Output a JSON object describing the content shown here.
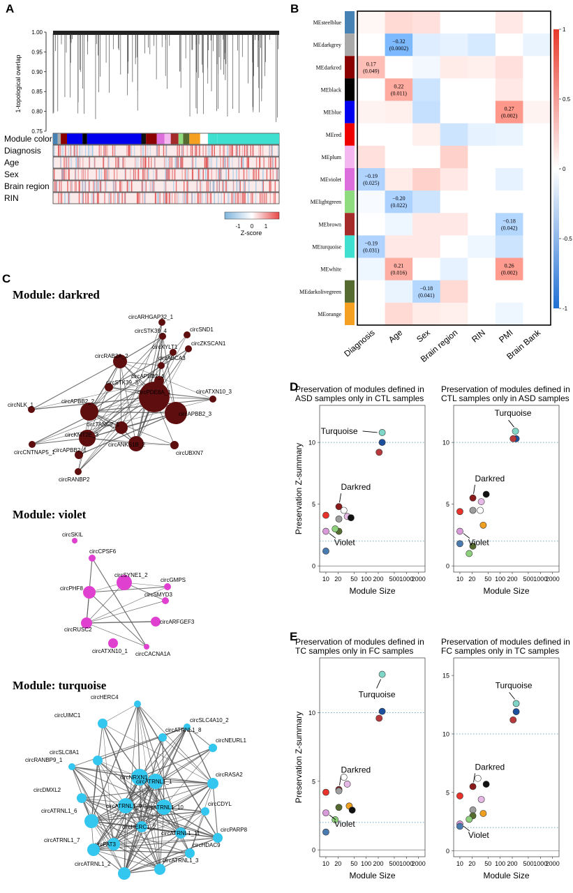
{
  "panel_labels": {
    "a": "A",
    "b": "B",
    "c": "C",
    "d": "D",
    "e": "E"
  },
  "panel_a": {
    "ylabel": "1-topological overlap",
    "yticks": [
      "1.00",
      "0.95",
      "0.90",
      "0.85",
      "0.80",
      "0.75"
    ],
    "tracks": [
      "Module color",
      "Diagnosis",
      "Age",
      "Sex",
      "Brain region",
      "RIN"
    ],
    "zscore_title": "Z-score",
    "zscore_ticks": [
      "-1",
      "0",
      "1"
    ]
  },
  "chart_data": [
    {
      "type": "heatmap",
      "title": "Module-trait correlation",
      "rows": [
        "MEsteelblue",
        "MEdarkgrey",
        "MEdarkred",
        "MEblack",
        "MEblue",
        "MEred",
        "MEplum",
        "MEviolet",
        "MElightgreen",
        "MEbrown",
        "MEturquoise",
        "MEwhite",
        "MEdarkolivegreen",
        "MEorange"
      ],
      "row_colors": [
        "#4682b4",
        "#a9a9a9",
        "#8b0000",
        "#000000",
        "#0000ee",
        "#ee0000",
        "#f4b7f0",
        "#dd6fdc",
        "#8fdc7f",
        "#a52a2a",
        "#40e0d0",
        "#ffffff",
        "#556b2f",
        "#f5a020"
      ],
      "columns": [
        "Diagnosis",
        "Age",
        "Sex",
        "Brain region",
        "RIN",
        "PMI",
        "Brain Bank"
      ],
      "values": [
        [
          0.02,
          0.1,
          0.08,
          0.0,
          0.0,
          0.06,
          0.0
        ],
        [
          0.0,
          -0.32,
          -0.08,
          -0.06,
          -0.1,
          0.0,
          -0.05
        ],
        [
          0.17,
          0.0,
          -0.03,
          0.05,
          0.04,
          0.08,
          0.0
        ],
        [
          0.0,
          0.22,
          -0.12,
          0.0,
          0.0,
          0.06,
          0.0
        ],
        [
          0.03,
          0.04,
          -0.14,
          0.0,
          0.0,
          0.27,
          0.03
        ],
        [
          0.0,
          0.0,
          0.04,
          -0.12,
          -0.06,
          -0.05,
          0.0
        ],
        [
          0.08,
          0.0,
          0.0,
          0.12,
          0.0,
          0.0,
          0.0
        ],
        [
          -0.19,
          0.05,
          0.12,
          0.06,
          0.0,
          -0.06,
          0.0
        ],
        [
          -0.02,
          -0.2,
          -0.12,
          0.0,
          0.0,
          0.0,
          0.0
        ],
        [
          0.0,
          -0.04,
          0.06,
          0.06,
          0.0,
          -0.18,
          0.0
        ],
        [
          -0.19,
          0.06,
          0.06,
          0.0,
          -0.04,
          -0.12,
          0.0
        ],
        [
          -0.04,
          0.21,
          0.0,
          -0.06,
          0.0,
          0.26,
          0.0
        ],
        [
          0.0,
          -0.05,
          -0.18,
          0.1,
          0.0,
          0.0,
          0.0
        ],
        [
          0.0,
          0.1,
          0.05,
          0.04,
          0.0,
          -0.04,
          0.0
        ]
      ],
      "cell_labels": [
        [
          "",
          "",
          "",
          "",
          "",
          "",
          ""
        ],
        [
          "",
          "−0.32\n(0.0002)",
          "",
          "",
          "",
          "",
          ""
        ],
        [
          "0.17\n(0.049)",
          "",
          "",
          "",
          "",
          "",
          ""
        ],
        [
          "",
          "0.22\n(0.011)",
          "",
          "",
          "",
          "",
          ""
        ],
        [
          "",
          "",
          "",
          "",
          "",
          "0.27\n(0.002)",
          ""
        ],
        [
          "",
          "",
          "",
          "",
          "",
          "",
          ""
        ],
        [
          "",
          "",
          "",
          "",
          "",
          "",
          ""
        ],
        [
          "−0.19\n(0.025)",
          "",
          "",
          "",
          "",
          "",
          ""
        ],
        [
          "",
          "−0.20\n(0.022)",
          "",
          "",
          "",
          "",
          ""
        ],
        [
          "",
          "",
          "",
          "",
          "",
          "−0.18\n(0.042)",
          ""
        ],
        [
          "−0.19\n(0.031)",
          "",
          "",
          "",
          "",
          "",
          ""
        ],
        [
          "",
          "0.21\n(0.016)",
          "",
          "",
          "",
          "0.26\n(0.002)",
          ""
        ],
        [
          "",
          "",
          "−0.18\n(0.041)",
          "",
          "",
          "",
          ""
        ],
        [
          "",
          "",
          "",
          "",
          "",
          "",
          ""
        ]
      ],
      "colorbar_ticks": [
        "1",
        "0.5",
        "0",
        "-0.5",
        "-1"
      ],
      "vlim": [
        -1,
        1
      ]
    },
    {
      "type": "scatter",
      "title": "Preservation of modules defined in ASD samples only in CTL samples",
      "title_lines": [
        "Preservation of modules defined in",
        "ASD samples only in CTL samples"
      ],
      "xlabel": "Module Size",
      "ylabel": "Preservation Z-summary",
      "xticks": [
        10,
        20,
        50,
        100,
        200,
        500,
        1000,
        2000
      ],
      "xtick_labels": [
        "10",
        "20",
        "50",
        "100",
        "200",
        "500",
        "1000",
        "2000"
      ],
      "yticks": [
        0,
        5,
        10
      ],
      "ylim": [
        -0.5,
        13
      ],
      "thresholds": [
        2,
        10
      ],
      "points": [
        {
          "module": "turquoise",
          "color": "#7fd6c6",
          "size": 250,
          "z": 10.8
        },
        {
          "module": "darkblue",
          "color": "#1c4f9c",
          "size": 250,
          "z": 10.0
        },
        {
          "module": "brown",
          "color": "#b8393b",
          "size": 210,
          "z": 9.2
        },
        {
          "module": "darkred",
          "color": "#8b1a1a",
          "size": 21,
          "z": 4.8
        },
        {
          "module": "white",
          "color": "#ffffff",
          "size": 28,
          "z": 4.5
        },
        {
          "module": "red",
          "color": "#e8322a",
          "size": 10,
          "z": 4.1
        },
        {
          "module": "plum",
          "color": "#e6b8e6",
          "size": 34,
          "z": 4.0
        },
        {
          "module": "black",
          "color": "#111111",
          "size": 42,
          "z": 3.9
        },
        {
          "module": "grey",
          "color": "#9e9e9e",
          "size": 21,
          "z": 3.8
        },
        {
          "module": "darkolivegreen",
          "color": "#556b2f",
          "size": 21,
          "z": 2.8
        },
        {
          "module": "lightgreen",
          "color": "#8ed07c",
          "size": 17,
          "z": 3.0
        },
        {
          "module": "violet",
          "color": "#d99ad9",
          "size": 10,
          "z": 2.8
        },
        {
          "module": "steelblue",
          "color": "#4a7bb0",
          "size": 10,
          "z": 1.2
        }
      ],
      "annotations": [
        "Turquoise",
        "Darkred",
        "Violet"
      ]
    },
    {
      "type": "scatter",
      "title": "Preservation of modules defined in CTL samples only in ASD samples",
      "title_lines": [
        "Preservation of modules defined in",
        "CTL samples only in ASD samples"
      ],
      "xlabel": "Module Size",
      "ylabel": "",
      "xticks": [
        10,
        20,
        50,
        100,
        200,
        500,
        1000,
        2000
      ],
      "xtick_labels": [
        "10",
        "20",
        "50",
        "100",
        "200",
        "500",
        "1000",
        "2000"
      ],
      "yticks": [
        0,
        5,
        10
      ],
      "ylim": [
        -0.5,
        13
      ],
      "thresholds": [
        2,
        10
      ],
      "points": [
        {
          "module": "turquoise",
          "color": "#7fd6c6",
          "size": 240,
          "z": 10.9
        },
        {
          "module": "darkblue",
          "color": "#1c4f9c",
          "size": 250,
          "z": 10.3
        },
        {
          "module": "brown",
          "color": "#b8393b",
          "size": 210,
          "z": 10.3
        },
        {
          "module": "black",
          "color": "#111111",
          "size": 45,
          "z": 5.8
        },
        {
          "module": "darkred",
          "color": "#8b1a1a",
          "size": 21,
          "z": 5.5
        },
        {
          "module": "plum",
          "color": "#e6b8e6",
          "size": 34,
          "z": 5.2
        },
        {
          "module": "white",
          "color": "#ffffff",
          "size": 32,
          "z": 4.5
        },
        {
          "module": "grey",
          "color": "#9e9e9e",
          "size": 21,
          "z": 4.5
        },
        {
          "module": "red",
          "color": "#e8322a",
          "size": 10,
          "z": 4.4
        },
        {
          "module": "orange",
          "color": "#f0a020",
          "size": 38,
          "z": 3.3
        },
        {
          "module": "violet",
          "color": "#d99ad9",
          "size": 10,
          "z": 2.8
        },
        {
          "module": "darkolivegreen",
          "color": "#556b2f",
          "size": 21,
          "z": 1.6
        },
        {
          "module": "steelblue",
          "color": "#4a7bb0",
          "size": 10,
          "z": 1.8
        },
        {
          "module": "lightgreen",
          "color": "#8ed07c",
          "size": 17,
          "z": 1.0
        }
      ],
      "annotations": [
        "Turquoise",
        "Darkred",
        "Violet"
      ]
    },
    {
      "type": "scatter",
      "title": "Preservation of modules defined in TC samples only in FC samples",
      "title_lines": [
        "Preservation of modules defined in",
        "TC samples only in FC samples"
      ],
      "xlabel": "Module Size",
      "ylabel": "Preservation Z-summary",
      "xticks": [
        10,
        20,
        50,
        100,
        200,
        500,
        1000,
        2000
      ],
      "xtick_labels": [
        "10",
        "20",
        "50",
        "100",
        "200",
        "500",
        "1000",
        "2000"
      ],
      "yticks": [
        0,
        5,
        10
      ],
      "ylim": [
        -0.5,
        14
      ],
      "thresholds": [
        2,
        10
      ],
      "points": [
        {
          "module": "turquoise",
          "color": "#7fd6c6",
          "size": 250,
          "z": 12.8
        },
        {
          "module": "darkblue",
          "color": "#1c4f9c",
          "size": 250,
          "z": 10.1
        },
        {
          "module": "brown",
          "color": "#b8393b",
          "size": 210,
          "z": 9.6
        },
        {
          "module": "white",
          "color": "#ffffff",
          "size": 28,
          "z": 5.3
        },
        {
          "module": "plum",
          "color": "#e6b8e6",
          "size": 34,
          "z": 4.8
        },
        {
          "module": "darkred",
          "color": "#8b1a1a",
          "size": 21,
          "z": 4.4
        },
        {
          "module": "grey",
          "color": "#9e9e9e",
          "size": 21,
          "z": 4.3
        },
        {
          "module": "red",
          "color": "#e8322a",
          "size": 10,
          "z": 4.2
        },
        {
          "module": "orange",
          "color": "#f0a020",
          "size": 38,
          "z": 3.2
        },
        {
          "module": "darkolivegreen",
          "color": "#556b2f",
          "size": 21,
          "z": 3.1
        },
        {
          "module": "black",
          "color": "#111111",
          "size": 45,
          "z": 2.9
        },
        {
          "module": "violet",
          "color": "#d99ad9",
          "size": 10,
          "z": 2.7
        },
        {
          "module": "lightgreen",
          "color": "#8ed07c",
          "size": 17,
          "z": 2.2
        },
        {
          "module": "steelblue",
          "color": "#4a7bb0",
          "size": 10,
          "z": 1.3
        }
      ],
      "annotations": [
        "Turquoise",
        "Darkred",
        "Violet"
      ]
    },
    {
      "type": "scatter",
      "title": "Preservation of modules defined in FC samples only in TC samples",
      "title_lines": [
        "Preservation of modules defined in",
        "FC samples only in TC samples"
      ],
      "xlabel": "Module Size",
      "ylabel": "",
      "xticks": [
        10,
        20,
        50,
        100,
        200,
        500,
        1000,
        2000
      ],
      "xtick_labels": [
        "10",
        "20",
        "50",
        "100",
        "200",
        "500",
        "1000",
        "2000"
      ],
      "yticks": [
        0,
        5,
        10,
        15
      ],
      "ylim": [
        -0.5,
        16.5
      ],
      "thresholds": [
        2,
        10
      ],
      "points": [
        {
          "module": "turquoise",
          "color": "#7fd6c6",
          "size": 250,
          "z": 12.6
        },
        {
          "module": "darkblue",
          "color": "#1c4f9c",
          "size": 250,
          "z": 11.9
        },
        {
          "module": "brown",
          "color": "#b8393b",
          "size": 210,
          "z": 11.2
        },
        {
          "module": "white",
          "color": "#ffffff",
          "size": 28,
          "z": 6.2
        },
        {
          "module": "black",
          "color": "#111111",
          "size": 45,
          "z": 5.7
        },
        {
          "module": "darkred",
          "color": "#8b1a1a",
          "size": 21,
          "z": 5.5
        },
        {
          "module": "red",
          "color": "#e8322a",
          "size": 10,
          "z": 4.7
        },
        {
          "module": "plum",
          "color": "#e6b8e6",
          "size": 34,
          "z": 4.4
        },
        {
          "module": "grey",
          "color": "#9e9e9e",
          "size": 21,
          "z": 3.5
        },
        {
          "module": "orange",
          "color": "#f0a020",
          "size": 38,
          "z": 3.2
        },
        {
          "module": "darkolivegreen",
          "color": "#556b2f",
          "size": 21,
          "z": 3.0
        },
        {
          "module": "lightgreen",
          "color": "#8ed07c",
          "size": 17,
          "z": 2.7
        },
        {
          "module": "violet",
          "color": "#d99ad9",
          "size": 10,
          "z": 2.3
        },
        {
          "module": "steelblue",
          "color": "#4a7bb0",
          "size": 10,
          "z": 2.1
        }
      ],
      "annotations": [
        "Turquoise",
        "Darkred",
        "Violet"
      ]
    }
  ],
  "networks": [
    {
      "title": "Module: darkred",
      "color": "#5e0e0e",
      "nodes": [
        "circARHGAP32_1",
        "circSTK39_4",
        "circSND1",
        "circZKSCAN1",
        "circXYLT1",
        "circRAB2A_2",
        "circABCA3",
        "circAPBB2_4",
        "circSTK39_3",
        "circATXN10_3",
        "circNLK_1",
        "circAPBB2_2",
        "circPDE8A_1",
        "circAPBB2_3",
        "circTANC2_1",
        "circKMT2E_3",
        "circCNTNAP5_1",
        "circAPBB2_1",
        "circANKS1B_2",
        "circUBXN7",
        "circRANBP2"
      ]
    },
    {
      "title": "Module: violet",
      "color": "#e040d0",
      "nodes": [
        "circSKIL",
        "circCPSF6",
        "circSYNE1_2",
        "circGMPS",
        "circPHF8",
        "circSMYD3",
        "circARFGEF3",
        "circRUSC2",
        "circATXN10_1",
        "circCACNA1A"
      ]
    },
    {
      "title": "Module: turquoise",
      "color": "#33c6ee",
      "nodes": [
        "circHERC4",
        "circUIMC1",
        "circSLC4A10_2",
        "circATRNL1_8",
        "circNEURL1",
        "circSLC8A1",
        "circRANBP9_1",
        "circNRXN1_3",
        "circATRNL1_1",
        "circRASA2",
        "circDMXL2",
        "circATRNL1_9",
        "circATRNL1_10",
        "circCDYL",
        "circATRNL1_6",
        "circHERC1_2",
        "circATRNL1_11",
        "circFAT3",
        "circPARP8",
        "circATRNL1_7",
        "circHDAC9",
        "circATRNL1_3",
        "circATRNL1_2"
      ]
    }
  ]
}
